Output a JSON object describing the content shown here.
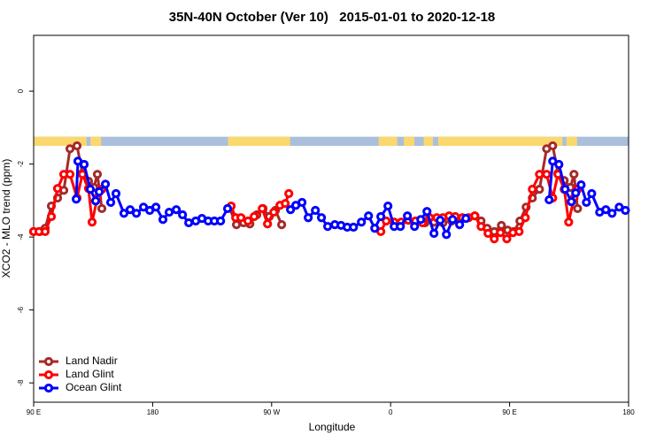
{
  "chart_data": {
    "type": "line",
    "title": "35N-40N October (Ver 10)   2015-01-01 to 2020-12-18",
    "x_label": "Longitude",
    "y_label": "XCO2 - MLO trend (ppm)",
    "xlim": [
      90,
      540
    ],
    "ylim": [
      -8.53,
      1.53
    ],
    "xticks": [
      {
        "value": 90,
        "label": "90 E"
      },
      180,
      {
        "value": 270,
        "label": "90 W"
      },
      {
        "value": 360,
        "label": "0"
      },
      {
        "value": 450,
        "label": "90 E"
      },
      {
        "value": 540,
        "label": "180"
      }
    ],
    "yticks": [
      -8,
      -6,
      -4,
      -2,
      0
    ],
    "legend": "bottom-left",
    "land_mask": {
      "band": [
        -1.5,
        -1.25
      ],
      "land_color": "#fbd86e",
      "ocean_color": "#a9bfdc",
      "segments": [
        [
          90,
          130
        ],
        [
          133,
          141
        ],
        [
          237,
          284
        ],
        [
          351,
          365
        ],
        [
          370,
          378
        ],
        [
          385,
          392
        ],
        [
          396,
          490
        ],
        [
          493,
          501
        ]
      ]
    },
    "series": [
      {
        "name": "Land Nadir",
        "color": "#a52a2a",
        "x": [
          90,
          94.7,
          98.7,
          103.4,
          108.1,
          112.8,
          117.5,
          122.8,
          126.9,
          131.5,
          135.6,
          138.2,
          141.6,
          190,
          238,
          243.4,
          248.8,
          253.5,
          258.8,
          263.5,
          268.2,
          272.9,
          277.6,
          330,
          386,
          392.8,
          399.5,
          406.2,
          412.9,
          423.7,
          428.4,
          433,
          438.4,
          443.8,
          448.5,
          453.1,
          457.8,
          462.5,
          467.2,
          472.6,
          478,
          482.6,
          486.6,
          491.3,
          496,
          498.7,
          501.4
        ],
        "values": [
          -3.85,
          -3.85,
          -3.76,
          -3.15,
          -2.93,
          -2.72,
          -1.58,
          -1.5,
          -2.25,
          -2.47,
          -2.64,
          -2.28,
          -3.22,
          null,
          -3.2,
          -3.66,
          -3.61,
          -3.64,
          -3.39,
          -3.22,
          -3.44,
          -3.27,
          -3.66,
          null,
          -3.61,
          -3.59,
          -3.61,
          -3.56,
          -3.52,
          -3.42,
          -3.56,
          -3.76,
          -3.85,
          -3.68,
          -3.81,
          -3.85,
          -3.56,
          -3.18,
          -2.93,
          -2.69,
          -1.58,
          -1.5,
          -2.25,
          -2.45,
          -2.64,
          -2.28,
          -3.22
        ]
      },
      {
        "name": "Land Glint",
        "color": "#ff0000",
        "x": [
          90,
          94,
          98.7,
          103.4,
          108.1,
          112.8,
          117.5,
          122.8,
          126.9,
          131.5,
          134.2,
          138.2,
          141.6,
          190,
          239.4,
          242.8,
          246.8,
          252.1,
          256.8,
          262.9,
          266.9,
          271.6,
          276.3,
          280.3,
          283,
          320,
          352.6,
          356.7,
          362.7,
          368,
          373.4,
          378.8,
          384.1,
          389.5,
          394.9,
          399.5,
          404.2,
          408.9,
          414.3,
          419,
          423.7,
          428.4,
          433.7,
          438.4,
          443.1,
          447.9,
          452.5,
          457.2,
          461.9,
          467.2,
          472.6,
          478,
          482.6,
          486.6,
          491.3,
          494.7,
          498.7,
          501.4
        ],
        "values": [
          -3.85,
          -3.85,
          -3.85,
          -3.44,
          -2.67,
          -2.28,
          -2.28,
          -2.93,
          -2.28,
          -2.67,
          -3.59,
          -2.93,
          -2.69,
          null,
          -3.15,
          -3.47,
          -3.47,
          -3.56,
          -3.44,
          -3.22,
          -3.64,
          -3.32,
          -3.13,
          -3.08,
          -2.81,
          null,
          -3.85,
          -3.56,
          -3.59,
          -3.59,
          -3.54,
          -3.56,
          -3.61,
          -3.47,
          -3.47,
          -3.47,
          -3.42,
          -3.44,
          -3.47,
          -3.47,
          -3.42,
          -3.71,
          -3.9,
          -4.05,
          -3.88,
          -4.05,
          -3.88,
          -3.85,
          -3.47,
          -2.69,
          -2.28,
          -2.28,
          -2.93,
          -2.28,
          -2.69,
          -3.59,
          -2.93,
          -2.69
        ]
      },
      {
        "name": "Ocean Glint",
        "color": "#0000ff",
        "x": [
          122.2,
          123.5,
          128.2,
          132.9,
          136.9,
          139.6,
          144.3,
          148.3,
          152.3,
          158.3,
          163,
          167.7,
          173.1,
          177.8,
          182.5,
          187.8,
          192.5,
          197.9,
          202.6,
          207.3,
          212.6,
          217.3,
          222,
          226.7,
          231.4,
          236.7,
          260,
          284.3,
          288.3,
          293,
          297.7,
          303.1,
          307.7,
          312.4,
          317.8,
          322.5,
          327.2,
          331.9,
          337.9,
          343.3,
          348,
          352.6,
          358,
          362.7,
          367.4,
          372.7,
          378.1,
          382.8,
          387.5,
          392.8,
          397.5,
          402.2,
          406.9,
          412.2,
          416.9,
          450,
          479.9,
          482.6,
          487.3,
          492,
          496.7,
          500,
          504.1,
          508.1,
          512.1,
          518.1,
          522.8,
          527.5,
          532.9,
          537.6
        ],
        "values": [
          -2.96,
          -1.92,
          -2.01,
          -2.69,
          -3.01,
          -2.76,
          -2.55,
          -3.05,
          -2.81,
          -3.35,
          -3.25,
          -3.35,
          -3.18,
          -3.27,
          -3.18,
          -3.52,
          -3.32,
          -3.25,
          -3.39,
          -3.61,
          -3.56,
          -3.49,
          -3.56,
          -3.56,
          -3.56,
          -3.22,
          null,
          -3.25,
          -3.13,
          -3.05,
          -3.47,
          -3.27,
          -3.47,
          -3.71,
          -3.66,
          -3.68,
          -3.73,
          -3.73,
          -3.59,
          -3.42,
          -3.76,
          -3.44,
          -3.15,
          -3.71,
          -3.71,
          -3.42,
          -3.71,
          -3.52,
          -3.3,
          -3.9,
          -3.54,
          -3.93,
          -3.52,
          -3.66,
          -3.49,
          null,
          -2.98,
          -1.92,
          -2.01,
          -2.69,
          -3.03,
          -2.79,
          -2.57,
          -3.05,
          -2.81,
          -3.32,
          -3.25,
          -3.35,
          -3.18,
          -3.27
        ]
      }
    ]
  }
}
